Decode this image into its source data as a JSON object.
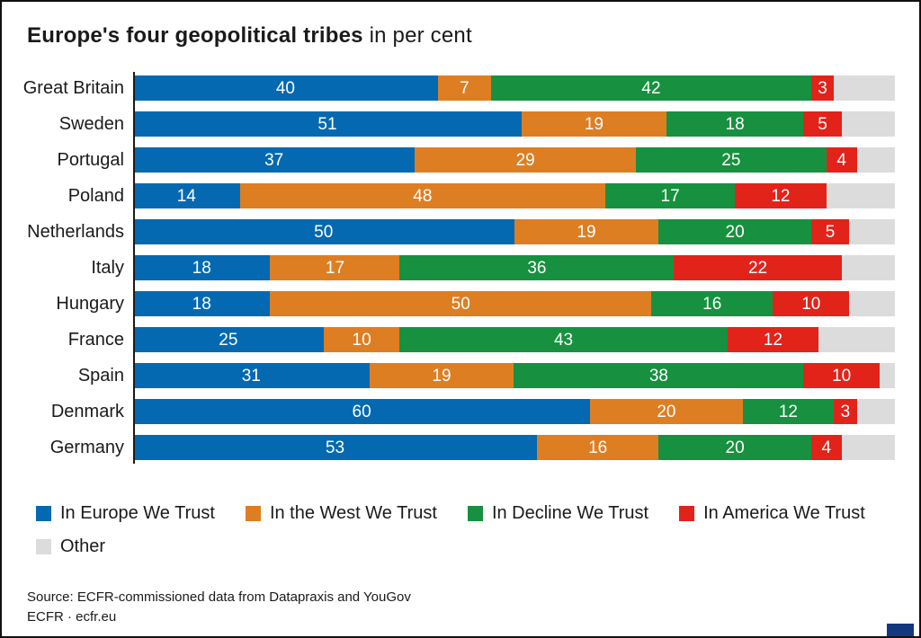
{
  "title": {
    "main": "Europe's four geopolitical tribes",
    "unit": " in per cent"
  },
  "colors": {
    "europe_blue": "#0569b1",
    "west_orange": "#de7e23",
    "decline_green": "#17913f",
    "america_red": "#e2231a",
    "other_grey": "#dcdcdc",
    "text": "#1a1a1a",
    "frame": "#111111",
    "brand_square_navy": "#14387f"
  },
  "chart_data": {
    "type": "bar",
    "variant": "horizontal-stacked",
    "title": "Europe's four geopolitical tribes",
    "unit": "per cent",
    "xlim": [
      0,
      100
    ],
    "grid": false,
    "legend_position": "bottom",
    "categories": [
      "Great Britain",
      "Sweden",
      "Portugal",
      "Poland",
      "Netherlands",
      "Italy",
      "Hungary",
      "France",
      "Spain",
      "Denmark",
      "Germany"
    ],
    "series": [
      {
        "name": "In Europe We Trust",
        "color": "#0569b1",
        "labels_shown": true,
        "values": [
          40,
          51,
          37,
          14,
          50,
          18,
          18,
          25,
          31,
          60,
          53
        ]
      },
      {
        "name": "In the West We Trust",
        "color": "#de7e23",
        "labels_shown": true,
        "values": [
          7,
          19,
          29,
          48,
          19,
          17,
          50,
          10,
          19,
          20,
          16
        ]
      },
      {
        "name": "In Decline We Trust",
        "color": "#17913f",
        "labels_shown": true,
        "values": [
          42,
          18,
          25,
          17,
          20,
          36,
          16,
          43,
          38,
          12,
          20
        ]
      },
      {
        "name": "In America We Trust",
        "color": "#e2231a",
        "labels_shown": true,
        "values": [
          3,
          5,
          4,
          12,
          5,
          22,
          10,
          12,
          10,
          3,
          4
        ]
      },
      {
        "name": "Other",
        "color": "#dcdcdc",
        "labels_shown": false,
        "is_remainder": true,
        "values": [
          8,
          7,
          5,
          9,
          6,
          7,
          6,
          10,
          2,
          5,
          7
        ]
      }
    ]
  },
  "legend": {
    "rows": [
      [
        {
          "label": "In Europe We Trust",
          "color": "#0569b1"
        },
        {
          "label": "In the West We Trust",
          "color": "#de7e23"
        },
        {
          "label": "In Decline We Trust",
          "color": "#17913f"
        },
        {
          "label": "In America We Trust",
          "color": "#e2231a"
        }
      ],
      [
        {
          "label": "Other",
          "color": "#dcdcdc"
        }
      ]
    ]
  },
  "source": {
    "line1": "Source: ECFR-commissioned data from Datapraxis and YouGov",
    "line2": "ECFR · ecfr.eu"
  }
}
